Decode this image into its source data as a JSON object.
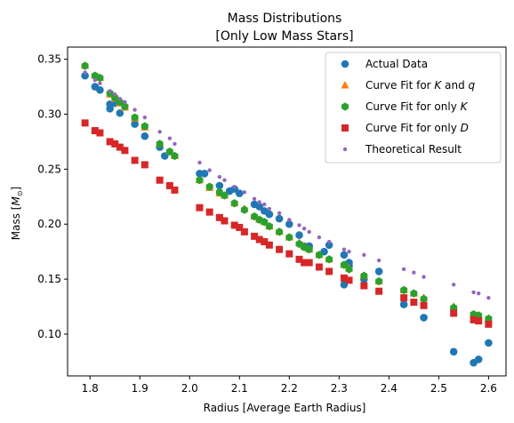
{
  "chart_data": {
    "type": "scatter",
    "title_line1": "Mass Distributions",
    "title_line2": "[Only Low Mass Stars]",
    "xlabel": "Radius [Average Earth Radius]",
    "ylabel": "Mass [M⊙]",
    "ylabel_main": "Mass [",
    "ylabel_sym": "M",
    "ylabel_sub": "⊙",
    "ylabel_end": "]",
    "xlim": [
      1.755,
      2.635
    ],
    "ylim": [
      0.062,
      0.361
    ],
    "xticks": [
      1.8,
      1.9,
      2.0,
      2.1,
      2.2,
      2.3,
      2.4,
      2.5,
      2.6
    ],
    "xtick_labels": [
      "1.8",
      "1.9",
      "2.0",
      "2.1",
      "2.2",
      "2.3",
      "2.4",
      "2.5",
      "2.6"
    ],
    "yticks": [
      0.1,
      0.15,
      0.2,
      0.25,
      0.3,
      0.35
    ],
    "ytick_labels": [
      "0.10",
      "0.15",
      "0.20",
      "0.25",
      "0.30",
      "0.35"
    ],
    "grid": false,
    "legend_position": "top-right",
    "legend": [
      {
        "label_parts": [
          [
            "Actual Data",
            false
          ]
        ],
        "marker": "circle",
        "color": "#1f77b4"
      },
      {
        "label_parts": [
          [
            "Curve Fit for ",
            false
          ],
          [
            "K",
            true
          ],
          [
            " and ",
            false
          ],
          [
            "q",
            true
          ]
        ],
        "marker": "triangle",
        "color": "#ff7f0e"
      },
      {
        "label_parts": [
          [
            "Curve Fit for only ",
            false
          ],
          [
            "K",
            true
          ]
        ],
        "marker": "hexagon",
        "color": "#2ca02c"
      },
      {
        "label_parts": [
          [
            "Curve Fit for only ",
            false
          ],
          [
            "D",
            true
          ]
        ],
        "marker": "square",
        "color": "#d62728"
      },
      {
        "label_parts": [
          [
            "Theoretical Result",
            false
          ]
        ],
        "marker": "dot",
        "color": "#9467bd"
      }
    ],
    "series": [
      {
        "name": "Actual Data",
        "marker": "circle",
        "color": "#1f77b4",
        "x": [
          1.79,
          1.81,
          1.82,
          1.84,
          1.84,
          1.85,
          1.86,
          1.89,
          1.91,
          1.94,
          1.95,
          2.02,
          2.03,
          2.06,
          2.08,
          2.09,
          2.1,
          2.13,
          2.14,
          2.15,
          2.16,
          2.18,
          2.2,
          2.22,
          2.23,
          2.24,
          2.27,
          2.28,
          2.31,
          2.31,
          2.32,
          2.32,
          2.35,
          2.38,
          2.43,
          2.47,
          2.53,
          2.57,
          2.58,
          2.6
        ],
        "y": [
          0.335,
          0.325,
          0.322,
          0.305,
          0.309,
          0.31,
          0.301,
          0.291,
          0.28,
          0.27,
          0.262,
          0.246,
          0.246,
          0.235,
          0.23,
          0.232,
          0.228,
          0.218,
          0.216,
          0.212,
          0.209,
          0.205,
          0.2,
          0.19,
          0.18,
          0.18,
          0.175,
          0.181,
          0.172,
          0.145,
          0.165,
          0.162,
          0.15,
          0.157,
          0.127,
          0.115,
          0.084,
          0.074,
          0.077,
          0.092
        ]
      },
      {
        "name": "Curve Fit for K and q",
        "marker": "triangle",
        "color": "#ff7f0e",
        "x": [
          1.79,
          1.81,
          1.82,
          1.84,
          1.85,
          1.86,
          1.87,
          1.89,
          1.91,
          1.94,
          1.96,
          1.97,
          2.02,
          2.04,
          2.06,
          2.07,
          2.09,
          2.11,
          2.13,
          2.14,
          2.15,
          2.16,
          2.18,
          2.2,
          2.22,
          2.23,
          2.24,
          2.26,
          2.28,
          2.31,
          2.32,
          2.35,
          2.38,
          2.43,
          2.45,
          2.47,
          2.53,
          2.57,
          2.58,
          2.6
        ],
        "y": [
          0.344,
          0.335,
          0.333,
          0.318,
          0.314,
          0.31,
          0.306,
          0.296,
          0.288,
          0.273,
          0.266,
          0.262,
          0.24,
          0.233,
          0.228,
          0.226,
          0.219,
          0.214,
          0.207,
          0.204,
          0.202,
          0.198,
          0.193,
          0.188,
          0.183,
          0.18,
          0.177,
          0.172,
          0.168,
          0.163,
          0.16,
          0.153,
          0.148,
          0.14,
          0.137,
          0.133,
          0.125,
          0.118,
          0.117,
          0.114
        ]
      },
      {
        "name": "Curve Fit for only K",
        "marker": "hexagon",
        "color": "#2ca02c",
        "x": [
          1.79,
          1.81,
          1.82,
          1.84,
          1.85,
          1.86,
          1.87,
          1.89,
          1.91,
          1.94,
          1.96,
          1.97,
          2.02,
          2.04,
          2.06,
          2.07,
          2.09,
          2.11,
          2.13,
          2.14,
          2.15,
          2.16,
          2.18,
          2.2,
          2.22,
          2.23,
          2.24,
          2.26,
          2.28,
          2.31,
          2.32,
          2.35,
          2.38,
          2.43,
          2.45,
          2.47,
          2.53,
          2.57,
          2.58,
          2.6
        ],
        "y": [
          0.344,
          0.335,
          0.333,
          0.319,
          0.315,
          0.311,
          0.307,
          0.297,
          0.289,
          0.273,
          0.266,
          0.262,
          0.24,
          0.234,
          0.229,
          0.226,
          0.219,
          0.213,
          0.207,
          0.204,
          0.202,
          0.198,
          0.193,
          0.188,
          0.182,
          0.179,
          0.177,
          0.172,
          0.168,
          0.163,
          0.159,
          0.153,
          0.148,
          0.14,
          0.137,
          0.132,
          0.124,
          0.118,
          0.117,
          0.114
        ]
      },
      {
        "name": "Curve Fit for only D",
        "marker": "square",
        "color": "#d62728",
        "x": [
          1.79,
          1.81,
          1.82,
          1.84,
          1.85,
          1.86,
          1.87,
          1.89,
          1.91,
          1.94,
          1.96,
          1.97,
          2.02,
          2.04,
          2.06,
          2.07,
          2.09,
          2.1,
          2.11,
          2.13,
          2.14,
          2.15,
          2.16,
          2.18,
          2.2,
          2.22,
          2.23,
          2.24,
          2.26,
          2.28,
          2.31,
          2.32,
          2.35,
          2.38,
          2.43,
          2.45,
          2.47,
          2.53,
          2.57,
          2.58,
          2.6
        ],
        "y": [
          0.292,
          0.285,
          0.283,
          0.275,
          0.273,
          0.27,
          0.267,
          0.258,
          0.254,
          0.24,
          0.235,
          0.231,
          0.215,
          0.211,
          0.206,
          0.203,
          0.199,
          0.197,
          0.193,
          0.189,
          0.186,
          0.184,
          0.181,
          0.177,
          0.173,
          0.168,
          0.165,
          0.165,
          0.161,
          0.157,
          0.151,
          0.149,
          0.144,
          0.139,
          0.133,
          0.129,
          0.126,
          0.119,
          0.113,
          0.112,
          0.109
        ]
      },
      {
        "name": "Theoretical Result",
        "marker": "dot",
        "color": "#9467bd",
        "x": [
          1.79,
          1.81,
          1.82,
          1.84,
          1.85,
          1.86,
          1.87,
          1.89,
          1.91,
          1.94,
          1.96,
          1.97,
          2.02,
          2.04,
          2.06,
          2.07,
          2.09,
          2.11,
          2.13,
          2.14,
          2.15,
          2.16,
          2.18,
          2.2,
          2.22,
          2.23,
          2.24,
          2.26,
          2.28,
          2.31,
          2.32,
          2.35,
          2.38,
          2.43,
          2.45,
          2.47,
          2.53,
          2.57,
          2.58,
          2.6
        ],
        "y": [
          0.338,
          0.331,
          0.328,
          0.321,
          0.318,
          0.314,
          0.311,
          0.304,
          0.297,
          0.284,
          0.278,
          0.273,
          0.256,
          0.249,
          0.243,
          0.24,
          0.234,
          0.229,
          0.223,
          0.22,
          0.218,
          0.214,
          0.21,
          0.204,
          0.199,
          0.196,
          0.193,
          0.188,
          0.184,
          0.177,
          0.175,
          0.172,
          0.167,
          0.159,
          0.156,
          0.152,
          0.145,
          0.138,
          0.137,
          0.133
        ]
      }
    ]
  }
}
